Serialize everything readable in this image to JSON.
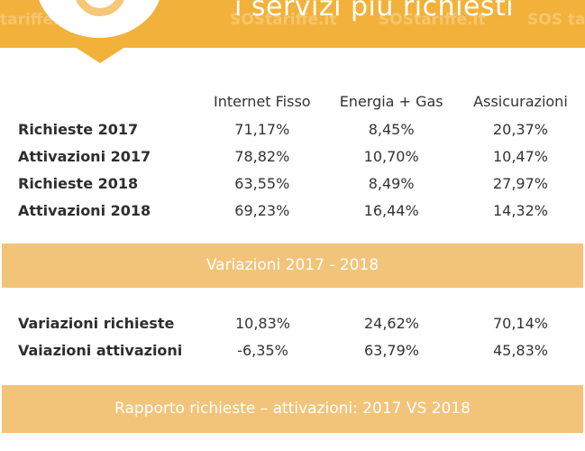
{
  "header": {
    "title": "i servizi più richiesti",
    "watermarks": [
      "tariffe.it",
      "SOStariffe.it",
      "SOStariffe.it",
      "SOS ta"
    ]
  },
  "columns": [
    "Internet Fisso",
    "Energia + Gas",
    "Assicurazioni"
  ],
  "section1": {
    "rows": [
      {
        "label": "Richieste 2017",
        "values": [
          "71,17%",
          "8,45%",
          "20,37%"
        ]
      },
      {
        "label": "Attivazioni 2017",
        "values": [
          "78,82%",
          "10,70%",
          "10,47%"
        ]
      },
      {
        "label": "Richieste 2018",
        "values": [
          "63,55%",
          "8,49%",
          "27,97%"
        ]
      },
      {
        "label": "Attivazioni 2018",
        "values": [
          "69,23%",
          "16,44%",
          "14,32%"
        ]
      }
    ]
  },
  "band1": {
    "text": "Variazioni 2017 - 2018"
  },
  "section2": {
    "rows": [
      {
        "label": "Variazioni richieste",
        "values": [
          "10,83%",
          "24,62%",
          "70,14%"
        ]
      },
      {
        "label": "Vaiazioni attivazioni",
        "values": [
          "-6,35%",
          "63,79%",
          "45,83%"
        ]
      }
    ]
  },
  "band2": {
    "text": "Rapporto richieste – attivazioni: 2017 VS 2018"
  },
  "colors": {
    "accent": "#f2b13a",
    "band": "#f2c47a"
  }
}
